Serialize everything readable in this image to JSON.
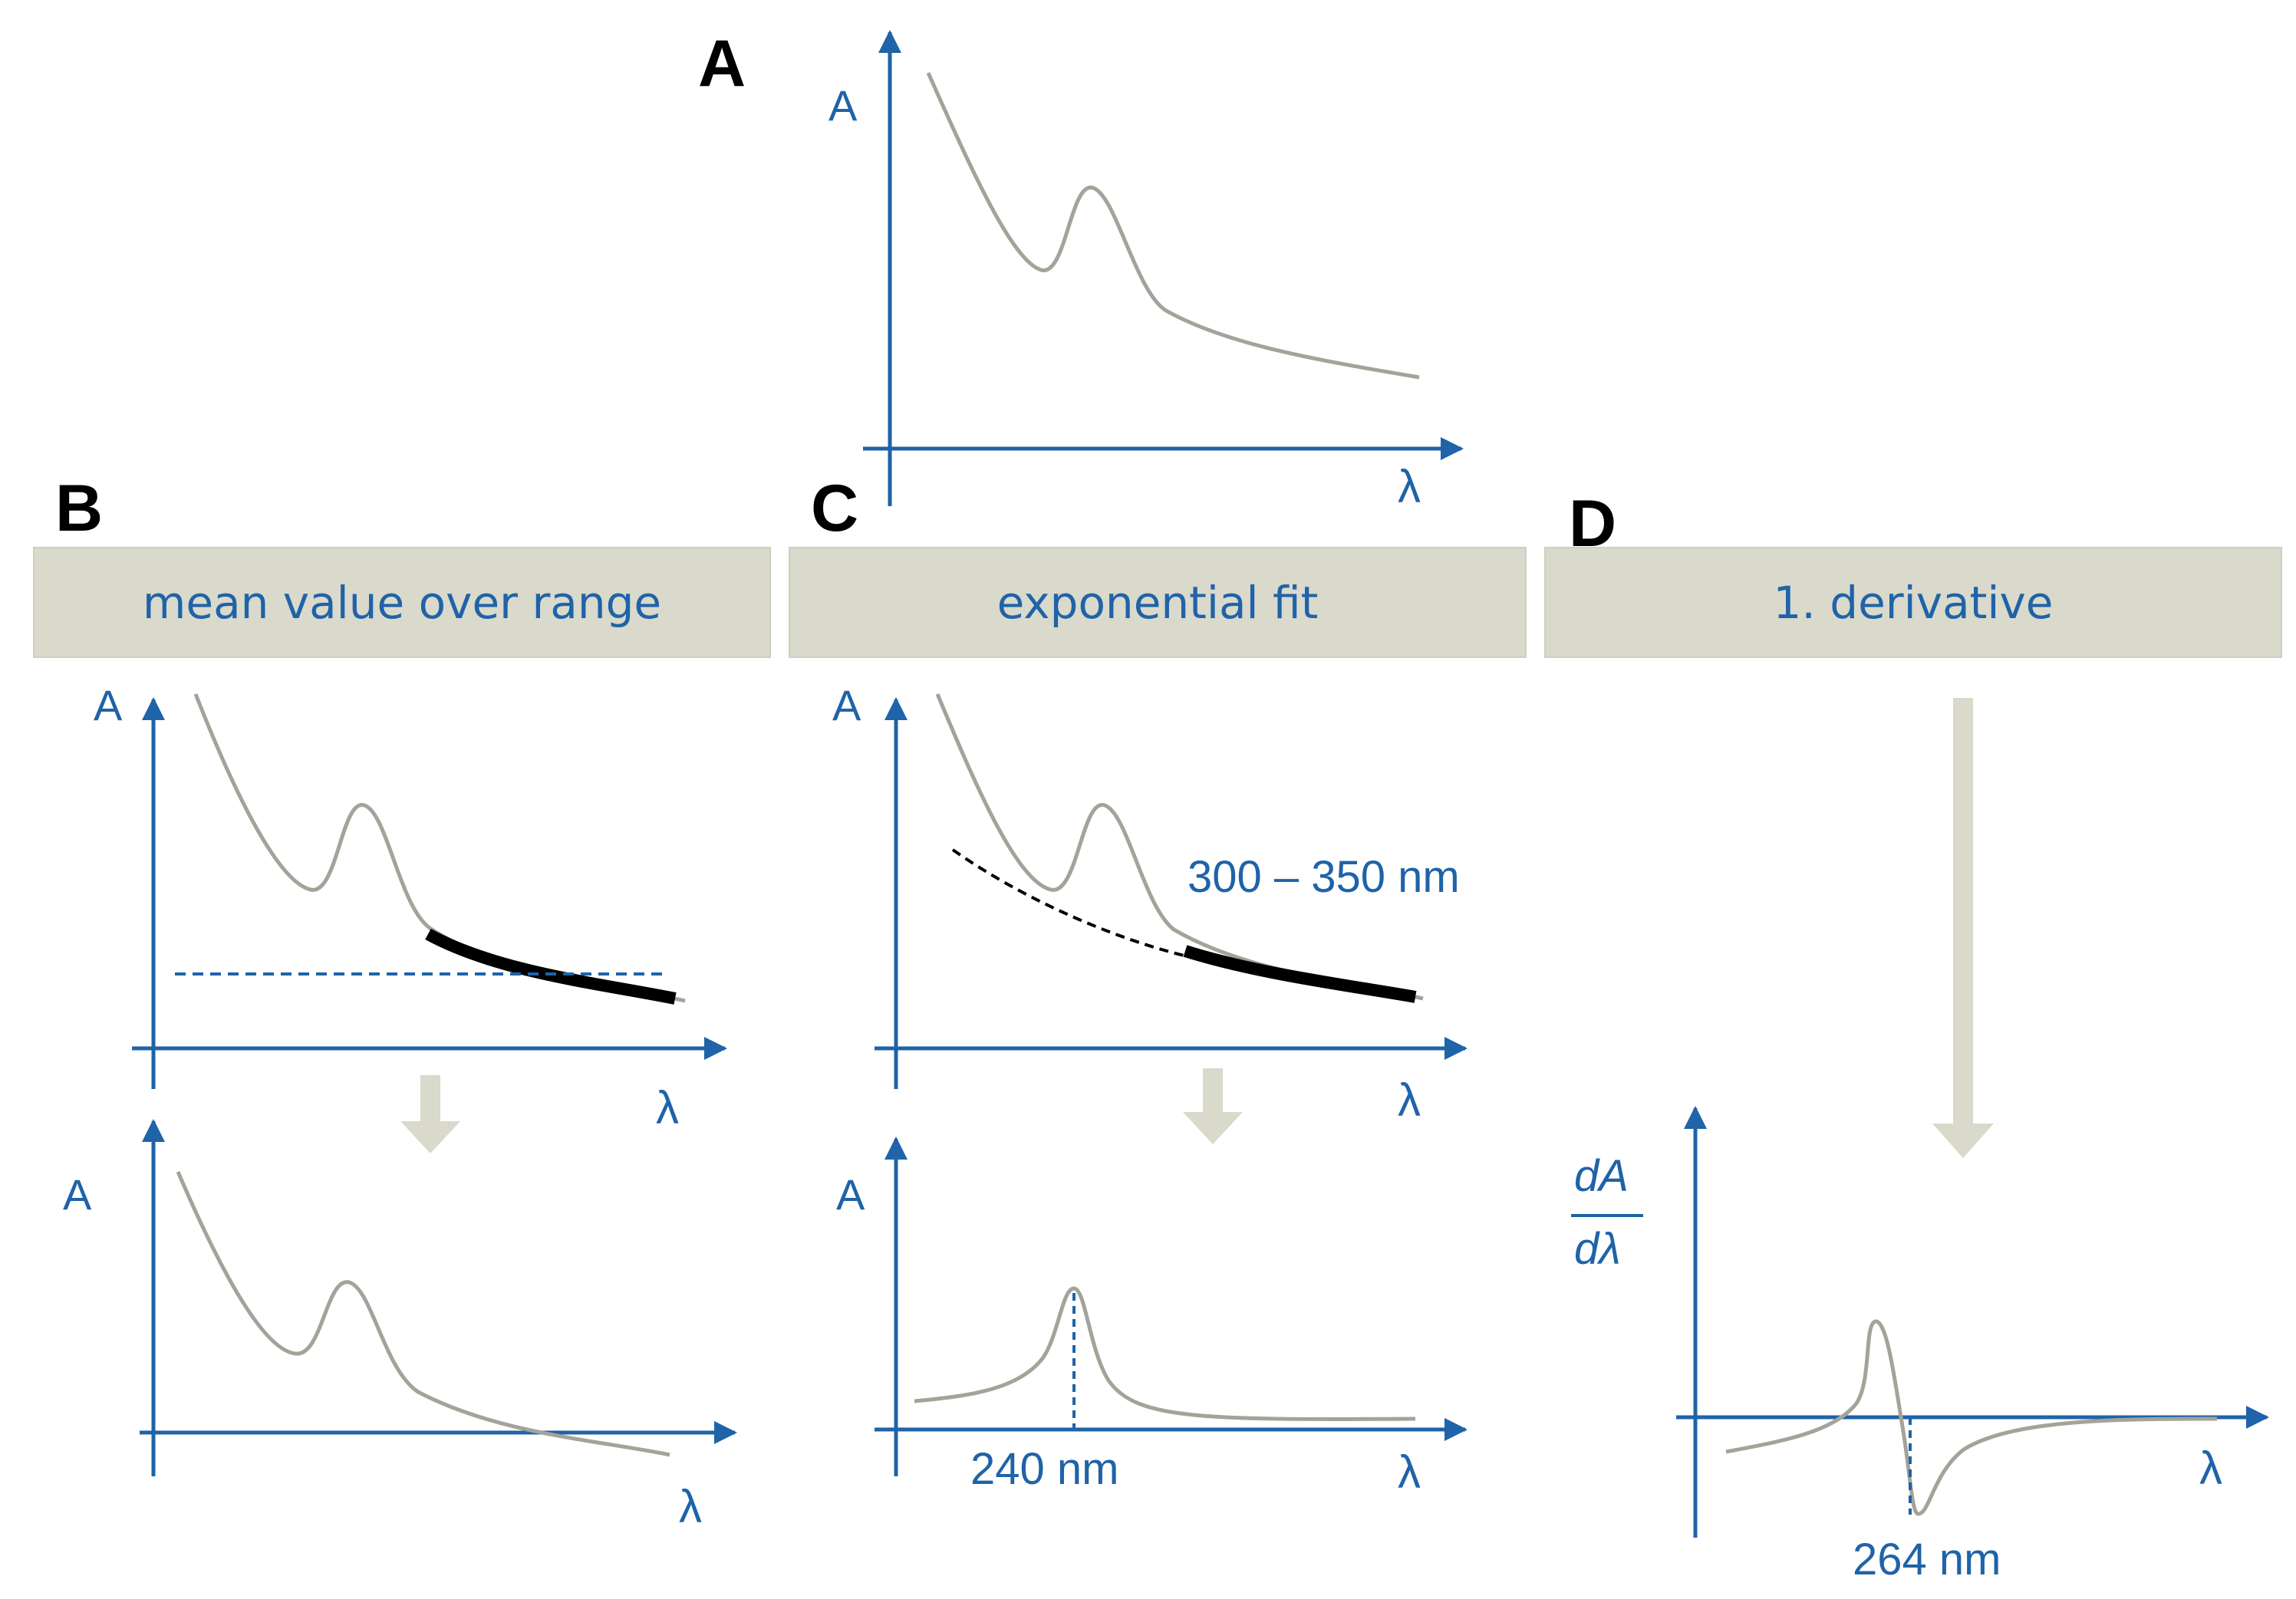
{
  "panels": {
    "a": {
      "letter": "A"
    },
    "b": {
      "letter": "B",
      "method": "mean value over range"
    },
    "c": {
      "letter": "C",
      "method": "exponential fit"
    },
    "d": {
      "letter": "D",
      "method": "1. derivative"
    }
  },
  "axes": {
    "absorbance": "A",
    "wavelength": "λ",
    "deriv_numerator": "dA",
    "deriv_denominator": "dλ"
  },
  "annotations": {
    "fit_range": "300  – 350 nm",
    "peak_c": "240 nm",
    "peak_d": "264 nm"
  },
  "colors": {
    "axis": "#1f63a8",
    "spectrum": "#a3a39a",
    "fit_segment": "#000000",
    "box_fill": "#d9d9cc",
    "arrow": "#d9d9cc"
  }
}
